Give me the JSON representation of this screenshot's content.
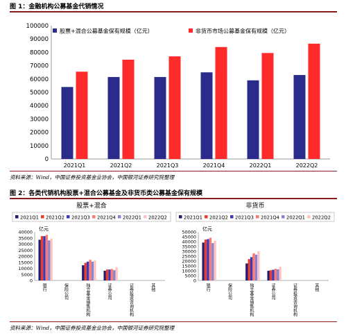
{
  "figure1": {
    "title": "图 1：金融机构公募基金代销情况",
    "source": "资料来源：Wind，中国证券投资基金业协会，中国银河证券研究院整理"
  },
  "figure2": {
    "title": "图 2：各类代销机构股票+混合公募基金及非货币类公募基金保有规模",
    "source": "资料来源：Wind，中国证券投资基金业协会，中国银河证券研究院整理"
  },
  "chart_data": [
    {
      "type": "bar",
      "categories": [
        "2021Q1",
        "2021Q2",
        "2021Q3",
        "2021Q4",
        "2022Q1",
        "2022Q2"
      ],
      "series": [
        {
          "name": "股票+混合公募基金保有规模（亿元）",
          "color": "#2b2b8c",
          "values": [
            54000,
            61500,
            61500,
            65000,
            59000,
            63000
          ]
        },
        {
          "name": "非货币市场公募基金保有规模（亿元）",
          "color": "#ff2a2a",
          "values": [
            65500,
            74500,
            77000,
            84000,
            79500,
            86500
          ]
        }
      ],
      "ylim": [
        0,
        100000
      ],
      "yticks": [
        0,
        10000,
        20000,
        30000,
        40000,
        50000,
        60000,
        70000,
        80000,
        90000,
        100000
      ],
      "legend": "top",
      "grid": false
    },
    {
      "type": "bar",
      "title": "股票+混合",
      "unit": "亿元",
      "categories": [
        "银行",
        "保险公司",
        "独立基金销售机构",
        "证券公司",
        "证券投资咨询机构",
        "其他"
      ],
      "series": [
        {
          "name": "2021Q1",
          "color": "#1f1f6e",
          "values": [
            33500,
            0,
            12500,
            8000,
            0,
            0
          ]
        },
        {
          "name": "2021Q2",
          "color": "#ef3b2c",
          "values": [
            36500,
            0,
            14500,
            9000,
            0,
            0
          ]
        },
        {
          "name": "2021Q3",
          "color": "#3a3ab8",
          "values": [
            36500,
            0,
            15500,
            9000,
            0,
            0
          ]
        },
        {
          "name": "2021Q4",
          "color": "#ff7a70",
          "values": [
            37500,
            0,
            17000,
            9500,
            0,
            0
          ]
        },
        {
          "name": "2022Q1",
          "color": "#8585d6",
          "values": [
            33000,
            0,
            15500,
            8500,
            0,
            0
          ]
        },
        {
          "name": "2022Q2",
          "color": "#ffc4bf",
          "values": [
            34500,
            0,
            16500,
            11000,
            0,
            0
          ]
        }
      ],
      "ylim": [
        0,
        40000
      ],
      "yticks": [
        0,
        5000,
        10000,
        15000,
        20000,
        25000,
        30000,
        35000,
        40000
      ],
      "legend": "top"
    },
    {
      "type": "bar",
      "title": "非货币",
      "unit": "亿元",
      "categories": [
        "银行",
        "保险公司",
        "独立基金销售机构",
        "证券公司",
        "证券投资咨询机构",
        "其他"
      ],
      "series": [
        {
          "name": "2021Q1",
          "color": "#1f1f6e",
          "values": [
            39000,
            0,
            17500,
            10000,
            0,
            0
          ]
        },
        {
          "name": "2021Q2",
          "color": "#ef3b2c",
          "values": [
            42000,
            0,
            22000,
            10500,
            0,
            0
          ]
        },
        {
          "name": "2021Q3",
          "color": "#3a3ab8",
          "values": [
            42500,
            0,
            24000,
            11000,
            0,
            0
          ]
        },
        {
          "name": "2021Q4",
          "color": "#ff7a70",
          "values": [
            44000,
            0,
            28000,
            12000,
            0,
            0
          ]
        },
        {
          "name": "2022Q1",
          "color": "#8585d6",
          "values": [
            38500,
            0,
            26500,
            11500,
            0,
            0
          ]
        },
        {
          "name": "2022Q2",
          "color": "#ffc4bf",
          "values": [
            41000,
            0,
            30000,
            14000,
            0,
            0
          ]
        }
      ],
      "ylim": [
        0,
        50000
      ],
      "yticks": [
        0,
        5000,
        10000,
        15000,
        20000,
        25000,
        30000,
        35000,
        40000,
        45000,
        50000
      ],
      "legend": "top"
    }
  ]
}
